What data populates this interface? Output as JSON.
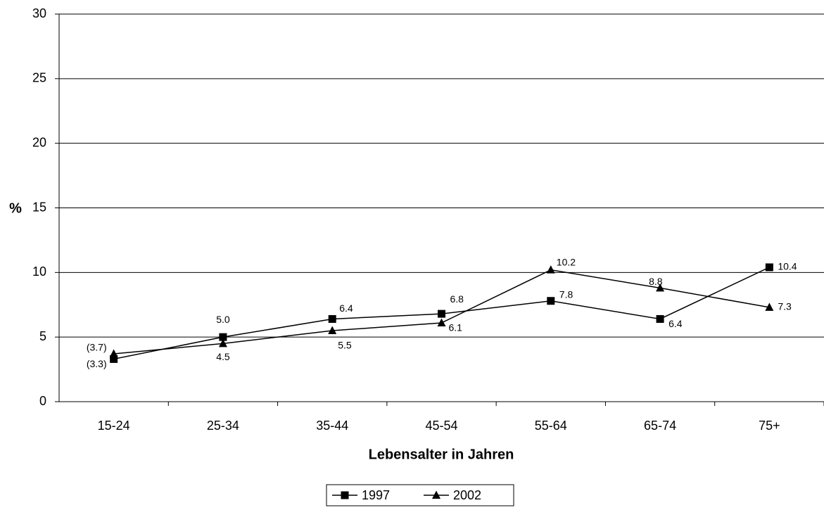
{
  "chart_data": {
    "type": "line",
    "x_label": "Lebensalter in Jahren",
    "y_label": "%",
    "categories": [
      "15-24",
      "25-34",
      "35-44",
      "45-54",
      "55-64",
      "65-74",
      "75+"
    ],
    "series": [
      {
        "name": "1997",
        "color": "#000000",
        "marker": "square",
        "values": [
          3.3,
          5.0,
          6.4,
          6.8,
          7.8,
          6.4,
          10.4
        ],
        "value_labels": [
          "(3.3)",
          "5.0",
          "6.4",
          "6.8",
          "7.8",
          "6.4",
          "10.4"
        ]
      },
      {
        "name": "2002",
        "color": "#000000",
        "marker": "triangle",
        "values": [
          3.7,
          4.5,
          5.5,
          6.1,
          10.2,
          8.8,
          7.3
        ],
        "value_labels": [
          "(3.7)",
          "4.5",
          "5.5",
          "6.1",
          "10.2",
          "8.8",
          "7.3"
        ]
      }
    ],
    "ylim": [
      0,
      30
    ],
    "yticks": [
      0,
      5,
      10,
      15,
      20,
      25,
      30
    ],
    "grid": true,
    "legend": "bottom"
  }
}
